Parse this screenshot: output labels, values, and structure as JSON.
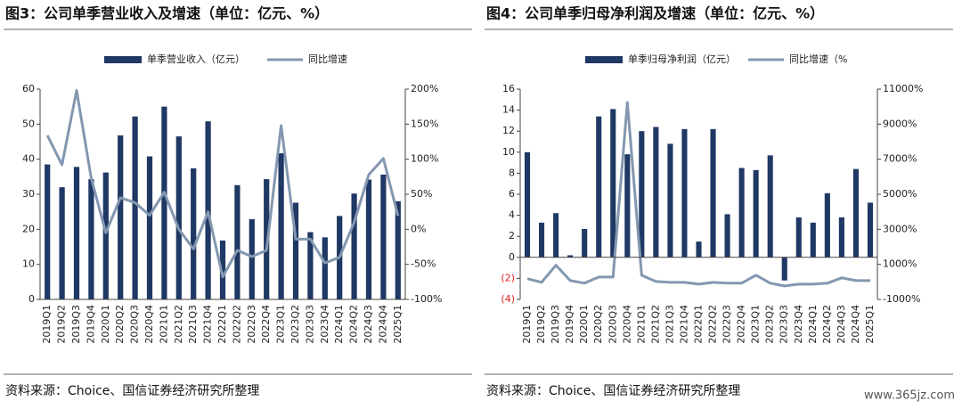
{
  "chart_data": [
    {
      "type": "bar_line",
      "title": "图3：公司单季营业收入及增速（单位：亿元、%）",
      "categories": [
        "2019Q1",
        "2019Q2",
        "2019Q3",
        "2019Q4",
        "2020Q1",
        "2020Q2",
        "2020Q3",
        "2020Q4",
        "2021Q1",
        "2021Q2",
        "2021Q3",
        "2021Q4",
        "2022Q1",
        "2022Q2",
        "2022Q3",
        "2022Q4",
        "2023Q1",
        "2023Q2",
        "2023Q3",
        "2023Q4",
        "2024Q1",
        "2024Q2",
        "2024Q3",
        "2024Q4",
        "2025Q1"
      ],
      "series": [
        {
          "name": "单季营业收入（亿元）",
          "color": "#1f3864",
          "values": [
            38.5,
            32,
            37.8,
            34.3,
            36.2,
            46.8,
            52.2,
            40.8,
            55,
            46.5,
            37.4,
            50.8,
            16.8,
            32.6,
            22.9,
            34.3,
            41.7,
            27.6,
            19.2,
            17.7,
            23.8,
            30.2,
            34.2,
            35.6,
            28
          ]
        },
        {
          "name": "同比增速",
          "color": "#8497b0",
          "axis": "y2",
          "values": [
            134,
            92,
            198,
            73,
            -5,
            45,
            38,
            20,
            53,
            0,
            -28,
            25,
            -68,
            -30,
            -39,
            -30,
            148,
            -14,
            -14,
            -48,
            -40,
            10,
            78,
            101,
            19
          ]
        }
      ],
      "ylim": [
        0,
        60
      ],
      "yticks": [
        0,
        10,
        20,
        30,
        40,
        50,
        60
      ],
      "y2lim": [
        -100,
        200
      ],
      "y2ticks": [
        {
          "value": -100,
          "label": "-100%"
        },
        {
          "value": -50,
          "label": "-50%"
        },
        {
          "value": 0,
          "label": "0%"
        },
        {
          "value": 50,
          "label": "50%"
        },
        {
          "value": 100,
          "label": "100%"
        },
        {
          "value": 150,
          "label": "150%"
        },
        {
          "value": 200,
          "label": "200%"
        }
      ],
      "source": "资料来源：Choice、国信证券经济研究所整理"
    },
    {
      "type": "bar_line",
      "title": "图4：公司单季归母净利润及增速（单位：亿元、%）",
      "categories": [
        "2019Q1",
        "2019Q2",
        "2019Q3",
        "2019Q4",
        "2020Q1",
        "2020Q2",
        "2020Q3",
        "2020Q4",
        "2021Q1",
        "2021Q2",
        "2021Q3",
        "2021Q4",
        "2022Q1",
        "2022Q2",
        "2022Q3",
        "2022Q4",
        "2023Q1",
        "2023Q2",
        "2023Q3",
        "2023Q4",
        "2024Q1",
        "2024Q2",
        "2024Q3",
        "2024Q4",
        "2025Q1"
      ],
      "series": [
        {
          "name": "单季归母净利润（亿元）",
          "color": "#1f3864",
          "values": [
            10,
            3.3,
            4.2,
            0.2,
            2.7,
            13.4,
            14.1,
            9.8,
            12,
            12.4,
            10.8,
            12.2,
            1.5,
            12.2,
            4.1,
            8.5,
            8.3,
            9.7,
            -2.2,
            3.8,
            3.3,
            6.1,
            3.8,
            8.4,
            5.2
          ]
        },
        {
          "name": "同比增速（%",
          "color": "#8497b0",
          "axis": "y2",
          "values": [
            180,
            -25,
            950,
            75,
            -75,
            280,
            280,
            10240,
            380,
            25,
            -25,
            -25,
            -130,
            -25,
            -75,
            -75,
            380,
            -75,
            -230,
            -130,
            -130,
            -75,
            230,
            75,
            75
          ]
        }
      ],
      "ylim": [
        -4,
        16
      ],
      "yticks": [
        {
          "value": -4,
          "label": "(4)"
        },
        {
          "value": -2,
          "label": "(2)"
        },
        0,
        2,
        4,
        6,
        8,
        10,
        12,
        14,
        16
      ],
      "negative_tick_color": "#e02020",
      "y2lim": [
        -1000,
        11000
      ],
      "y2ticks": [
        {
          "value": -1000,
          "label": "-1000%"
        },
        {
          "value": 1000,
          "label": "1000%"
        },
        {
          "value": 3000,
          "label": "3000%"
        },
        {
          "value": 5000,
          "label": "5000%"
        },
        {
          "value": 7000,
          "label": "7000%"
        },
        {
          "value": 9000,
          "label": "9000%"
        },
        {
          "value": 11000,
          "label": "11000%"
        }
      ],
      "source": "资料来源：Choice、国信证券经济研究所整理"
    }
  ],
  "watermark": "www.365jz.com"
}
